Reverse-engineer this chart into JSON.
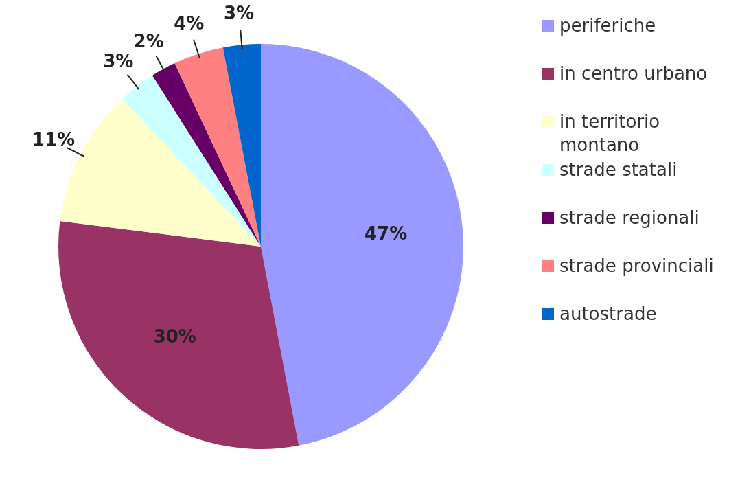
{
  "chart_data": {
    "type": "pie",
    "categories": [
      "periferiche",
      "in centro urbano",
      "in territorio montano",
      "strade statali",
      "strade regionali",
      "strade provinciali",
      "autostrade"
    ],
    "values": [
      47,
      30,
      11,
      3,
      2,
      4,
      3
    ],
    "colors": [
      "#9999ff",
      "#993366",
      "#ffffcc",
      "#ccffff",
      "#660066",
      "#ff8080",
      "#0066cc"
    ],
    "value_labels": [
      "47%",
      "30%",
      "11%",
      "3%",
      "2%",
      "4%",
      "3%"
    ],
    "legend": "right"
  }
}
